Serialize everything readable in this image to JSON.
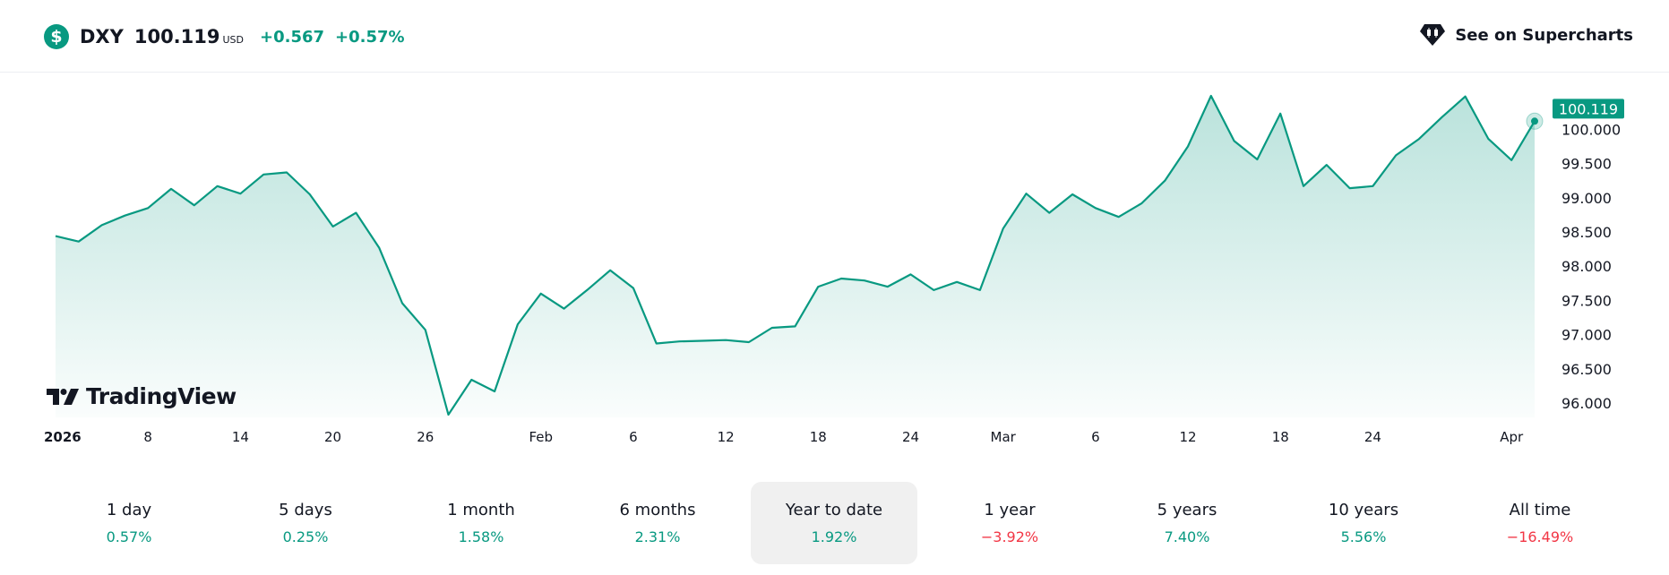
{
  "header": {
    "symbol": "DXY",
    "price": "100.119",
    "currency": "USD",
    "change": "+0.567",
    "change_percent": "+0.57%",
    "supercharts_label": "See on Supercharts",
    "icon": "dollar-icon"
  },
  "logo": {
    "text": "TradingView"
  },
  "colors": {
    "up": "#089981",
    "down": "#f23645",
    "line": "#089981"
  },
  "chart_data": {
    "type": "area",
    "title": "DXY",
    "xlabel": "",
    "ylabel": "",
    "ylim": [
      95.7,
      100.7
    ],
    "y_ticks": [
      "96.000",
      "96.500",
      "97.000",
      "97.500",
      "98.000",
      "98.500",
      "99.000",
      "99.500",
      "100.000"
    ],
    "y_tick_values": [
      96,
      96.5,
      97,
      97.5,
      98,
      98.5,
      99,
      99.5,
      100
    ],
    "x_ticks": [
      {
        "label": "2026",
        "index": 0.2,
        "bold": true
      },
      {
        "label": "8",
        "index": 4
      },
      {
        "label": "14",
        "index": 8
      },
      {
        "label": "20",
        "index": 12
      },
      {
        "label": "26",
        "index": 16
      },
      {
        "label": "Feb",
        "index": 21
      },
      {
        "label": "6",
        "index": 25
      },
      {
        "label": "12",
        "index": 29
      },
      {
        "label": "18",
        "index": 33
      },
      {
        "label": "24",
        "index": 37
      },
      {
        "label": "Mar",
        "index": 41
      },
      {
        "label": "6",
        "index": 45
      },
      {
        "label": "12",
        "index": 49
      },
      {
        "label": "18",
        "index": 53
      },
      {
        "label": "24",
        "index": 57
      },
      {
        "label": "Apr",
        "index": 63
      }
    ],
    "values": [
      98.44,
      98.36,
      98.6,
      98.74,
      98.85,
      99.13,
      98.89,
      99.17,
      99.06,
      99.34,
      99.37,
      99.05,
      98.58,
      98.78,
      98.27,
      97.46,
      97.07,
      95.83,
      96.34,
      96.17,
      97.15,
      97.6,
      97.38,
      97.65,
      97.94,
      97.68,
      96.87,
      96.9,
      96.91,
      96.92,
      96.89,
      97.1,
      97.12,
      97.7,
      97.82,
      97.79,
      97.7,
      97.88,
      97.65,
      97.77,
      97.65,
      98.55,
      99.06,
      98.78,
      99.05,
      98.85,
      98.72,
      98.92,
      99.25,
      99.75,
      100.49,
      99.83,
      99.56,
      100.23,
      99.17,
      99.48,
      99.14,
      99.17,
      99.62,
      99.86,
      100.18,
      100.48,
      99.86,
      99.55,
      100.119
    ],
    "last_value_label": "100.119",
    "grid": false
  },
  "periods": [
    {
      "label": "1 day",
      "value": "0.57%",
      "dir": "up"
    },
    {
      "label": "5 days",
      "value": "0.25%",
      "dir": "up"
    },
    {
      "label": "1 month",
      "value": "1.58%",
      "dir": "up"
    },
    {
      "label": "6 months",
      "value": "2.31%",
      "dir": "up"
    },
    {
      "label": "Year to date",
      "value": "1.92%",
      "dir": "up",
      "active": true
    },
    {
      "label": "1 year",
      "value": "−3.92%",
      "dir": "down"
    },
    {
      "label": "5 years",
      "value": "7.40%",
      "dir": "up"
    },
    {
      "label": "10 years",
      "value": "5.56%",
      "dir": "up"
    },
    {
      "label": "All time",
      "value": "−16.49%",
      "dir": "down"
    }
  ]
}
